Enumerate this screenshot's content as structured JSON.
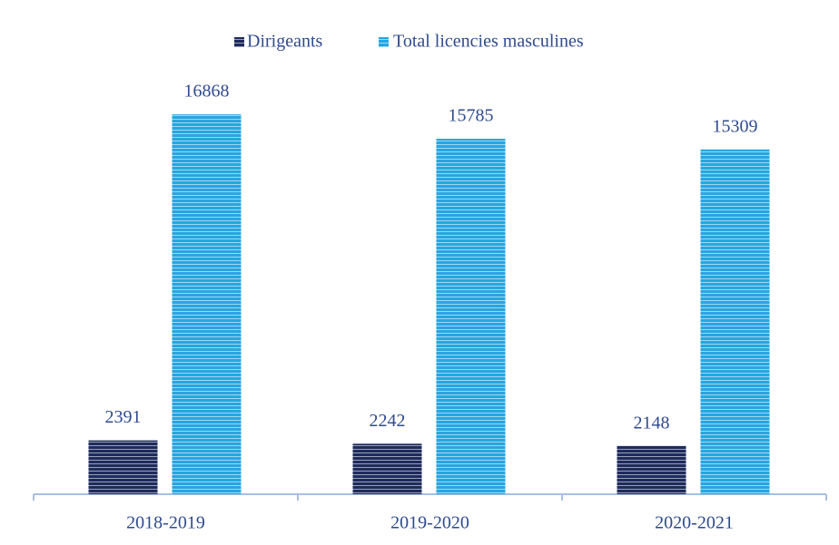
{
  "chart_data": {
    "type": "bar",
    "categories": [
      "2018-2019",
      "2019-2020",
      "2020-2021"
    ],
    "series": [
      {
        "name": "Dirigeants",
        "color": "#1e2b5c",
        "values": [
          2391,
          2242,
          2148
        ]
      },
      {
        "name": "Total licencies masculines",
        "color": "#27a6e1",
        "values": [
          16868,
          15785,
          15309
        ]
      }
    ],
    "ylim": [
      0,
      18000
    ],
    "legend": "top"
  }
}
